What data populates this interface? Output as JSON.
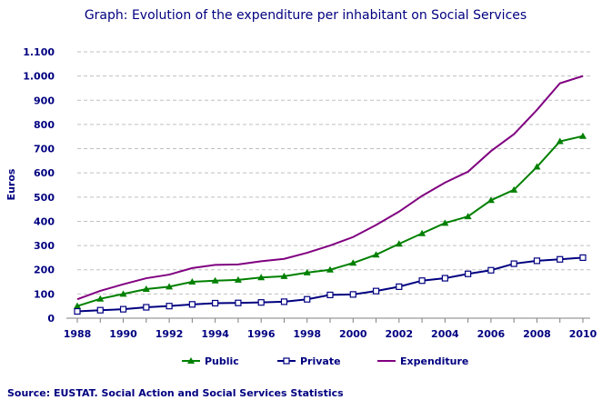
{
  "title": "Graph:  Evolution of the expenditure per inhabitant on Social Services",
  "source": "Source: EUSTAT. Social Action and Social Services Statistics",
  "chart_data": {
    "type": "line",
    "title": "Graph:  Evolution of the expenditure per inhabitant on Social Services",
    "xlabel": "",
    "ylabel": "Euros",
    "ylim": [
      0,
      1100
    ],
    "yticks": [
      0,
      100,
      200,
      300,
      400,
      500,
      600,
      700,
      800,
      900,
      1000,
      1100
    ],
    "ytick_labels": [
      "0",
      "100",
      "200",
      "300",
      "400",
      "500",
      "600",
      "700",
      "800",
      "900",
      "1.000",
      "1.100"
    ],
    "xtick_labels": [
      "1988",
      "1990",
      "1992",
      "1994",
      "1996",
      "1998",
      "2000",
      "2002",
      "2004",
      "2006",
      "2008",
      "2010"
    ],
    "grid": true,
    "legend": "bottom",
    "x": [
      1988,
      1989,
      1990,
      1991,
      1992,
      1993,
      1994,
      1995,
      1996,
      1997,
      1998,
      1999,
      2000,
      2001,
      2002,
      2003,
      2004,
      2005,
      2006,
      2007,
      2008,
      2009,
      2010
    ],
    "series": [
      {
        "name": "Public",
        "color": "#008000",
        "marker": "triangle",
        "values": [
          50,
          80,
          100,
          120,
          130,
          150,
          155,
          158,
          168,
          173,
          188,
          200,
          228,
          262,
          307,
          350,
          393,
          420,
          487,
          530,
          625,
          730,
          752
        ]
      },
      {
        "name": "Private",
        "color": "#000080",
        "marker": "square",
        "values": [
          28,
          33,
          37,
          45,
          50,
          57,
          62,
          63,
          65,
          68,
          78,
          96,
          98,
          112,
          130,
          155,
          165,
          183,
          198,
          225,
          237,
          243,
          250
        ]
      },
      {
        "name": "Expenditure",
        "color": "#800080",
        "marker": "none",
        "values": [
          78,
          113,
          140,
          165,
          180,
          207,
          220,
          222,
          235,
          245,
          270,
          300,
          335,
          385,
          440,
          505,
          560,
          605,
          690,
          760,
          860,
          970,
          1000
        ]
      }
    ]
  }
}
